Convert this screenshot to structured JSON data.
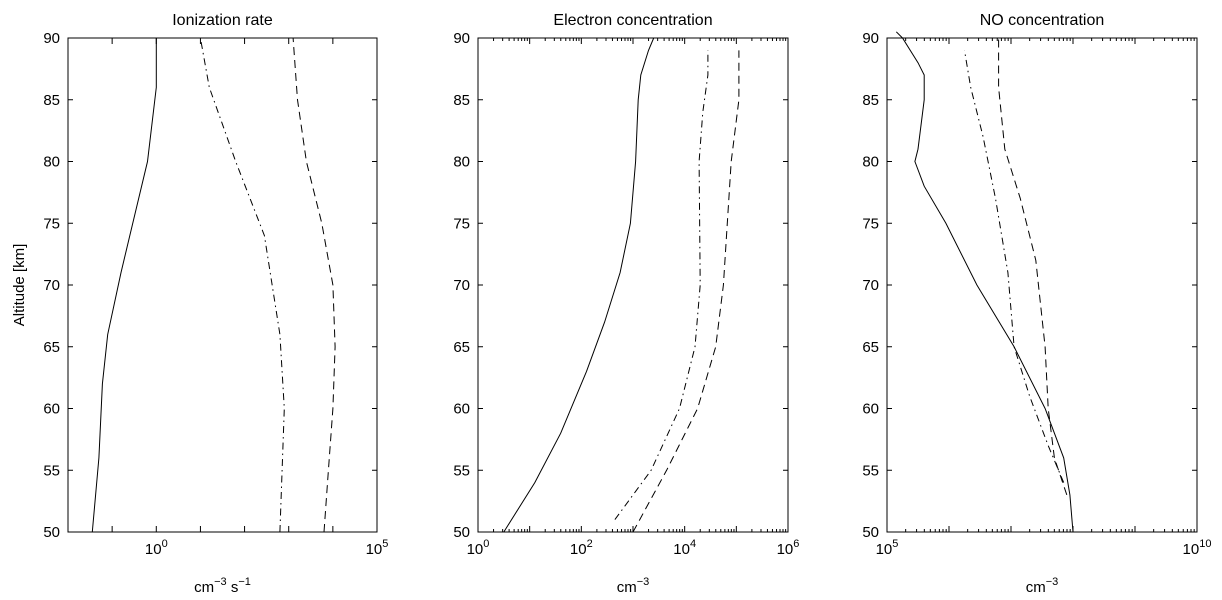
{
  "chart_data": [
    {
      "type": "line",
      "title": "Ionization rate",
      "xscale": "log",
      "xlim_log10": [
        -2,
        5
      ],
      "ylim": [
        50,
        90
      ],
      "xticks": [
        {
          "base": "10",
          "exp": "0"
        },
        {
          "base": "10",
          "exp": "5"
        }
      ],
      "xlabel_parts": [
        {
          "t": "cm"
        },
        {
          "t": "−3",
          "sup": true
        },
        {
          "t": " s"
        },
        {
          "t": "−1",
          "sup": true
        }
      ],
      "ylabel": "Altitude [km]",
      "series": [
        {
          "style": "solid",
          "x_log10": [
            -1.45,
            -1.4,
            -1.3,
            -1.22,
            -1.1,
            -0.8,
            -0.6,
            -0.2,
            0.0,
            0.0
          ],
          "y": [
            50,
            52,
            56,
            62,
            66,
            71,
            74,
            80,
            86,
            90
          ]
        },
        {
          "style": "dashdot",
          "x_log10": [
            2.8,
            2.9,
            2.8,
            2.45,
            1.8,
            1.2,
            1.0
          ],
          "y": [
            50,
            60,
            66,
            74,
            80,
            86,
            90
          ]
        },
        {
          "style": "dashed",
          "x_log10": [
            3.8,
            3.9,
            4.0,
            4.05,
            4.0,
            3.75,
            3.4,
            3.2,
            3.1
          ],
          "y": [
            50,
            55,
            60,
            65,
            70,
            75,
            80,
            85,
            90
          ]
        }
      ]
    },
    {
      "type": "line",
      "title": "Electron concentration",
      "xscale": "log",
      "xlim_log10": [
        0,
        6
      ],
      "ylim": [
        50,
        90
      ],
      "xticks": [
        {
          "base": "10",
          "exp": "0"
        },
        {
          "base": "10",
          "exp": "2"
        },
        {
          "base": "10",
          "exp": "4"
        },
        {
          "base": "10",
          "exp": "6"
        }
      ],
      "xlabel_parts": [
        {
          "t": "cm"
        },
        {
          "t": "−3",
          "sup": true
        }
      ],
      "ylabel": "",
      "series": [
        {
          "style": "solid",
          "x_log10": [
            0.5,
            1.1,
            1.6,
            2.1,
            2.45,
            2.75,
            2.95,
            3.05,
            3.1,
            3.15,
            3.3,
            3.4
          ],
          "y": [
            50,
            54,
            58,
            63,
            67,
            71,
            75,
            80,
            85,
            87,
            89,
            90
          ]
        },
        {
          "style": "dashdot",
          "x_log10": [
            2.65,
            3.35,
            3.9,
            4.2,
            4.3,
            4.28,
            4.35,
            4.45,
            4.45
          ],
          "y": [
            51,
            55,
            60,
            65,
            70,
            80,
            84,
            87,
            89
          ]
        },
        {
          "style": "dashed",
          "x_log10": [
            3.0,
            3.65,
            4.25,
            4.6,
            4.75,
            4.9,
            5.05,
            5.05
          ],
          "y": [
            50,
            55,
            60,
            65,
            70,
            80,
            85,
            89
          ]
        }
      ]
    },
    {
      "type": "line",
      "title": "NO concentration",
      "xscale": "log",
      "xlim_log10": [
        5,
        10
      ],
      "ylim": [
        50,
        90
      ],
      "xticks": [
        {
          "base": "10",
          "exp": "5"
        },
        {
          "base": "10",
          "exp": "10"
        }
      ],
      "xlabel_parts": [
        {
          "t": "cm"
        },
        {
          "t": "−3",
          "sup": true
        }
      ],
      "ylabel": "",
      "series": [
        {
          "style": "solid",
          "x_log10": [
            8.0,
            7.95,
            7.85,
            7.55,
            7.05,
            6.45,
            5.95,
            5.6,
            5.45,
            5.5,
            5.55,
            5.6,
            5.6,
            5.5,
            5.25,
            5.15
          ],
          "y": [
            50,
            53,
            56,
            60,
            65,
            70,
            75,
            78,
            80,
            81,
            83,
            85,
            87,
            88,
            90,
            90.5
          ]
        },
        {
          "style": "dashdot",
          "x_log10": [
            7.85,
            7.6,
            7.3,
            7.05,
            6.95,
            6.75,
            6.55,
            6.35,
            6.25
          ],
          "y": [
            54,
            57,
            61,
            65,
            71,
            77,
            82,
            86,
            89
          ]
        },
        {
          "style": "dashed",
          "x_log10": [
            7.9,
            7.7,
            7.6,
            7.55,
            7.4,
            7.15,
            6.9,
            6.8,
            6.8
          ],
          "y": [
            53,
            56,
            60,
            65,
            72,
            77,
            81,
            86,
            90
          ]
        }
      ]
    }
  ],
  "yticks": [
    50,
    55,
    60,
    65,
    70,
    75,
    80,
    85,
    90
  ]
}
